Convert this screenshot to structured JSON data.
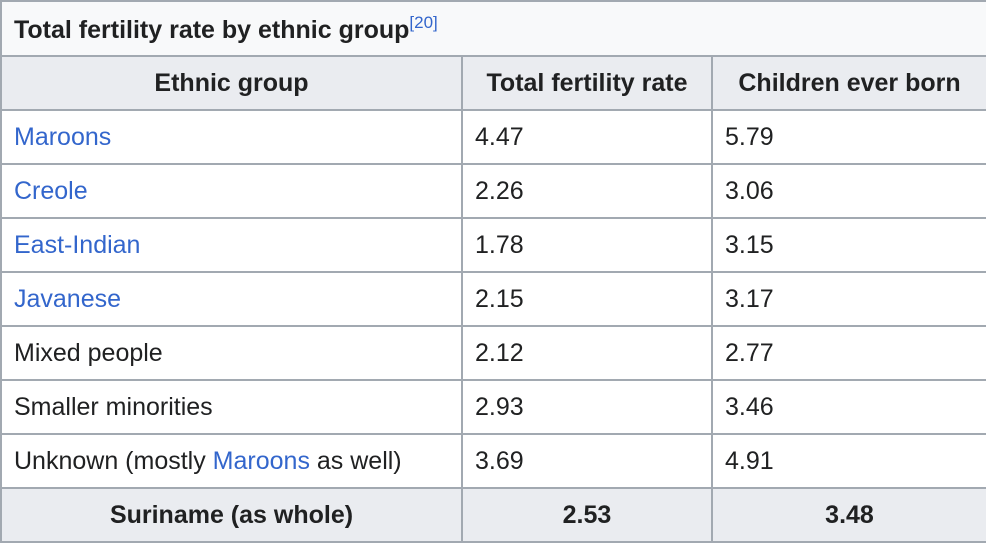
{
  "table": {
    "title": "Total fertility rate by ethnic group",
    "title_ref": "[20]",
    "headers": [
      "Ethnic group",
      "Total fertility rate",
      "Children ever born"
    ],
    "rows": [
      {
        "group": "Maroons",
        "tfr": "4.47",
        "ceb": "5.79"
      },
      {
        "group": "Creole",
        "tfr": "2.26",
        "ceb": "3.06"
      },
      {
        "group": "East-Indian",
        "tfr": "1.78",
        "ceb": "3.15"
      },
      {
        "group": "Javanese",
        "tfr": "2.15",
        "ceb": "3.17"
      },
      {
        "group": "Mixed people",
        "tfr": "2.12",
        "ceb": "2.77"
      },
      {
        "group": "Smaller minorities",
        "tfr": "2.93",
        "ceb": "3.46"
      },
      {
        "group_prefix": "Unknown (mostly ",
        "group_link": "Maroons",
        "group_suffix": " as well)",
        "tfr": "3.69",
        "ceb": "4.91"
      }
    ],
    "total": {
      "group": "Suriname (as whole)",
      "tfr": "2.53",
      "ceb": "3.48"
    }
  },
  "colors": {
    "link": "#3366cc",
    "header_bg": "#eaecf0",
    "border": "#a2a9b1"
  }
}
